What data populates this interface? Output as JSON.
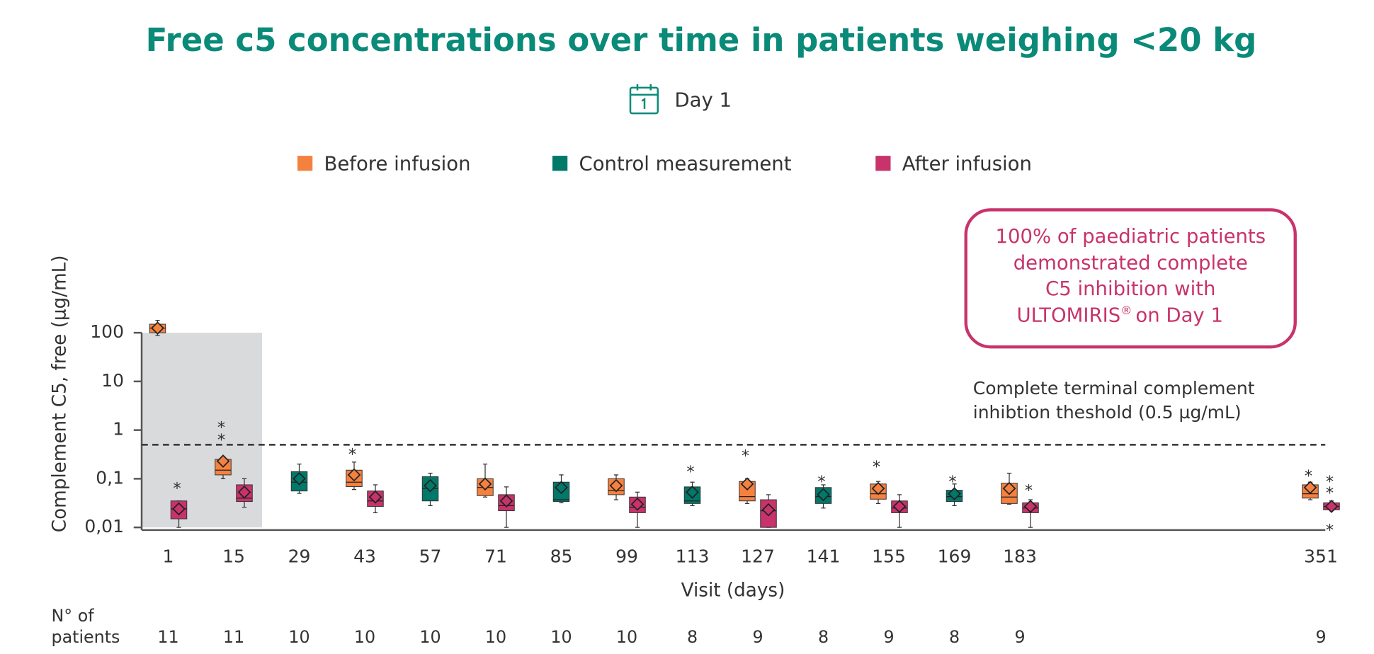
{
  "chart_data": {
    "type": "box",
    "title": "Free c5 concentrations over time in patients weighing <20 kg",
    "subtitle": "Day 1",
    "ylabel": "Complement C5, free (µg/mL)",
    "xlabel": "Visit (days)",
    "log_scale": true,
    "ylim": [
      0.01,
      100
    ],
    "yticks": [
      {
        "value": 0.01,
        "label": "0,01"
      },
      {
        "value": 0.1,
        "label": "0,1"
      },
      1,
      10,
      100
    ],
    "categories": [
      1,
      15,
      29,
      43,
      57,
      71,
      85,
      99,
      113,
      127,
      141,
      155,
      169,
      183,
      351
    ],
    "outlier_marker": "*",
    "threshold": 0.5,
    "threshold_label": [
      "Complete terminal complement",
      "inhibtion theshold (0.5 µg/mL)"
    ],
    "annotation": {
      "lines": [
        "100% of paediatric patients",
        "demonstrated complete",
        "C5 inhibition with"
      ],
      "brand": "ULTOMIRIS",
      "brand_mark": "®",
      "brand_suffix": "on Day 1"
    },
    "patients_label": [
      "N° of",
      "patients"
    ],
    "patients": [
      11,
      11,
      10,
      10,
      10,
      10,
      10,
      10,
      8,
      9,
      8,
      9,
      8,
      9,
      9
    ],
    "series": [
      {
        "name": "Before infusion",
        "color": "#f5813f",
        "min": [
          88,
          0.1,
          null,
          0.06,
          null,
          0.042,
          null,
          0.037,
          null,
          0.031,
          null,
          0.031,
          null,
          0.03,
          0.037
        ],
        "q1": [
          100,
          0.12,
          null,
          0.069,
          null,
          0.045,
          null,
          0.047,
          null,
          0.035,
          null,
          0.038,
          null,
          0.031,
          0.04
        ],
        "median": [
          125,
          0.15,
          null,
          0.085,
          null,
          0.066,
          null,
          0.057,
          null,
          0.043,
          null,
          0.049,
          null,
          0.042,
          0.049
        ],
        "q3": [
          150,
          0.25,
          null,
          0.15,
          null,
          0.1,
          null,
          0.1,
          null,
          0.088,
          null,
          0.078,
          null,
          0.081,
          0.075
        ],
        "max": [
          180,
          0.28,
          null,
          0.22,
          null,
          0.2,
          null,
          0.12,
          null,
          0.1,
          null,
          0.088,
          null,
          0.13,
          0.085
        ],
        "mean": [
          125,
          0.23,
          null,
          0.12,
          null,
          0.078,
          null,
          0.072,
          null,
          0.078,
          null,
          0.063,
          null,
          0.063,
          0.066
        ],
        "outliers": [
          [],
          [
            0.72,
            1.3
          ],
          [],
          [
            0.36
          ],
          [],
          [],
          [],
          [],
          [],
          [
            0.34
          ],
          [],
          [
            0.2
          ],
          [],
          [],
          [
            0.13
          ]
        ]
      },
      {
        "name": "Control measurement",
        "color": "#00786a",
        "min": [
          null,
          null,
          0.05,
          null,
          0.028,
          null,
          0.032,
          null,
          0.028,
          null,
          0.025,
          null,
          0.028,
          null,
          null
        ],
        "q1": [
          null,
          null,
          0.056,
          null,
          0.035,
          null,
          0.034,
          null,
          0.031,
          null,
          0.031,
          null,
          0.034,
          null,
          null
        ],
        "median": [
          null,
          null,
          0.085,
          null,
          0.063,
          null,
          0.037,
          null,
          0.035,
          null,
          0.043,
          null,
          0.043,
          null,
          null
        ],
        "q3": [
          null,
          null,
          0.14,
          null,
          0.11,
          null,
          0.085,
          null,
          0.068,
          null,
          0.066,
          null,
          0.058,
          null,
          null
        ],
        "max": [
          null,
          null,
          0.2,
          null,
          0.13,
          null,
          0.12,
          null,
          0.085,
          null,
          0.075,
          null,
          0.078,
          null,
          null
        ],
        "mean": [
          null,
          null,
          0.1,
          null,
          0.072,
          null,
          0.066,
          null,
          0.053,
          null,
          0.047,
          null,
          0.049,
          null,
          null
        ],
        "outliers": [
          [],
          [],
          [],
          [],
          [],
          [],
          [],
          [],
          [
            0.16
          ],
          [],
          [
            0.1
          ],
          [],
          [
            0.1
          ],
          [],
          []
        ]
      },
      {
        "name": "After infusion",
        "color": "#c8336b",
        "min": [
          0.01,
          0.026,
          null,
          0.02,
          null,
          0.01,
          null,
          0.01,
          null,
          0.01,
          null,
          0.01,
          null,
          0.01,
          0.022
        ],
        "q1": [
          0.015,
          0.034,
          null,
          0.027,
          null,
          0.022,
          null,
          0.02,
          null,
          0.01,
          null,
          0.02,
          null,
          0.02,
          0.023
        ],
        "median": [
          0.024,
          0.04,
          null,
          0.035,
          null,
          0.028,
          null,
          0.026,
          null,
          0.022,
          null,
          0.025,
          null,
          0.025,
          0.027
        ],
        "q3": [
          0.035,
          0.075,
          null,
          0.056,
          null,
          0.047,
          null,
          0.042,
          null,
          0.037,
          null,
          0.035,
          null,
          0.032,
          0.032
        ],
        "max": [
          0.035,
          0.1,
          null,
          0.075,
          null,
          0.068,
          null,
          0.053,
          null,
          0.047,
          null,
          0.047,
          null,
          0.037,
          0.035
        ],
        "mean": [
          0.024,
          0.053,
          null,
          0.042,
          null,
          0.035,
          null,
          0.03,
          null,
          0.023,
          null,
          0.027,
          null,
          0.027,
          0.027
        ],
        "outliers": [
          [
            0.072
          ],
          [],
          [],
          [],
          [],
          [],
          [],
          [],
          [],
          [],
          [],
          [],
          [],
          [
            0.066
          ],
          [
            0.1,
            0.058,
            0.01
          ]
        ]
      }
    ]
  }
}
